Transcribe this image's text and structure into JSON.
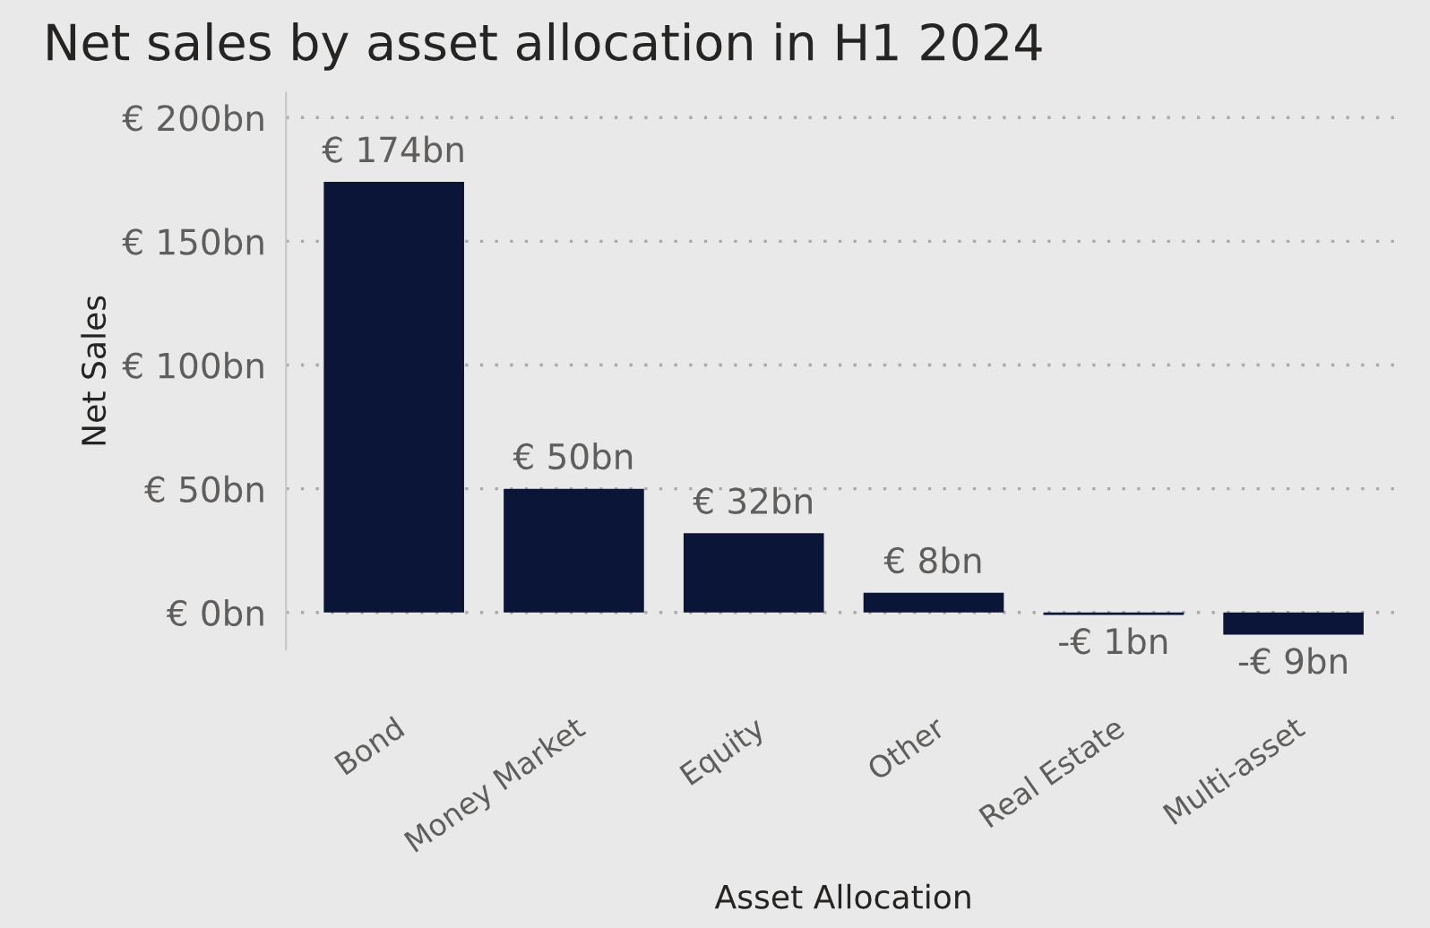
{
  "chart_data": {
    "type": "bar",
    "title": "Net sales by asset allocation in H1 2024",
    "xlabel": "Asset Allocation",
    "ylabel": "Net Sales",
    "categories": [
      "Bond",
      "Money Market",
      "Equity",
      "Other",
      "Real Estate",
      "Multi-asset"
    ],
    "values": [
      174,
      50,
      32,
      8,
      -1,
      -9
    ],
    "value_labels": [
      "€ 174bn",
      "€ 50bn",
      "€ 32bn",
      "€ 8bn",
      "-€ 1bn",
      "-€ 9bn"
    ],
    "color": "#0b1538",
    "yticks": [
      {
        "value": 0,
        "label": "€ 0bn"
      },
      {
        "value": 50,
        "label": "€ 50bn"
      },
      {
        "value": 100,
        "label": "€ 100bn"
      },
      {
        "value": 150,
        "label": "€ 150bn"
      },
      {
        "value": 200,
        "label": "€ 200bn"
      }
    ],
    "ylim": [
      -15,
      210
    ],
    "grid": "y"
  }
}
